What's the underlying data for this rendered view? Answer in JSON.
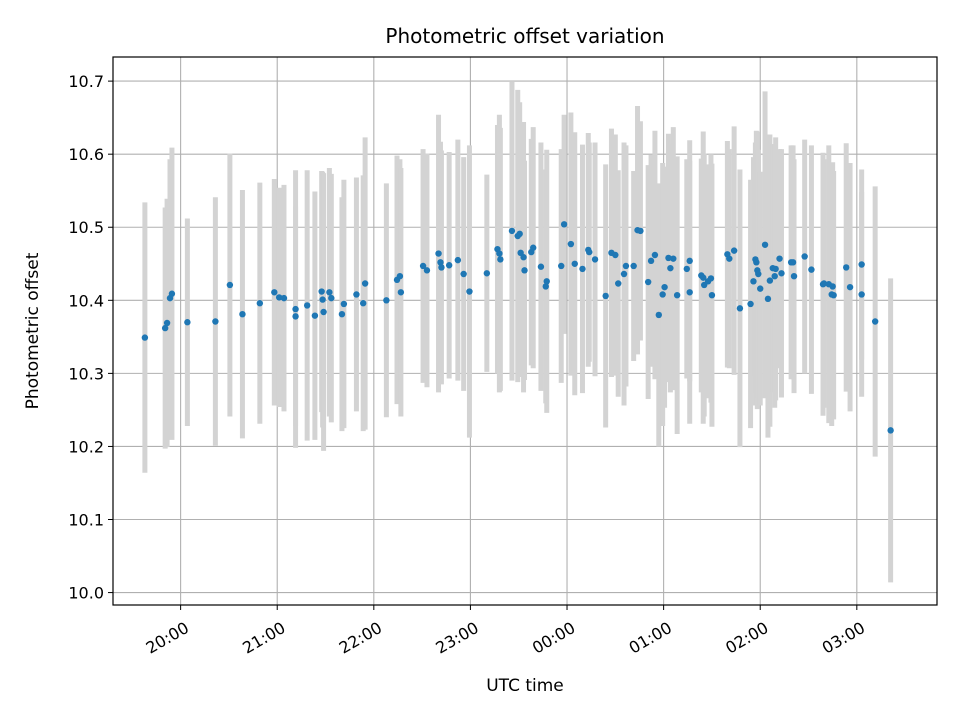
{
  "chart_data": {
    "type": "scatter",
    "title": "Photometric offset variation",
    "xlabel": "UTC time",
    "ylabel": "Photometric offset",
    "grid": true,
    "x_unit": "hours UTC (values above 24 are after midnight)",
    "xlim": [
      19.3,
      27.83
    ],
    "ylim": [
      9.983,
      10.733
    ],
    "x_ticks": [
      {
        "value": 20,
        "label": "20:00"
      },
      {
        "value": 21,
        "label": "21:00"
      },
      {
        "value": 22,
        "label": "22:00"
      },
      {
        "value": 23,
        "label": "23:00"
      },
      {
        "value": 24,
        "label": "00:00"
      },
      {
        "value": 25,
        "label": "01:00"
      },
      {
        "value": 26,
        "label": "02:00"
      },
      {
        "value": 27,
        "label": "03:00"
      }
    ],
    "y_ticks": [
      {
        "value": 10.0,
        "label": "10.0"
      },
      {
        "value": 10.1,
        "label": "10.1"
      },
      {
        "value": 10.2,
        "label": "10.2"
      },
      {
        "value": 10.3,
        "label": "10.3"
      },
      {
        "value": 10.4,
        "label": "10.4"
      },
      {
        "value": 10.5,
        "label": "10.5"
      },
      {
        "value": 10.6,
        "label": "10.6"
      },
      {
        "value": 10.7,
        "label": "10.7"
      }
    ],
    "colors": {
      "point": "#1f77b4",
      "errorbar": "#d3d3d3",
      "grid": "#b0b0b0"
    },
    "series": [
      {
        "points": [
          [
            19.63,
            10.349,
            0.185
          ],
          [
            19.84,
            10.362,
            0.165
          ],
          [
            19.86,
            10.369,
            0.17
          ],
          [
            19.89,
            10.403,
            0.19
          ],
          [
            19.91,
            10.409,
            0.2
          ],
          [
            20.07,
            10.37,
            0.142
          ],
          [
            20.36,
            10.371,
            0.17
          ],
          [
            20.51,
            10.421,
            0.18
          ],
          [
            20.64,
            10.381,
            0.17
          ],
          [
            20.82,
            10.396,
            0.165
          ],
          [
            20.97,
            10.411,
            0.155
          ],
          [
            21.02,
            10.404,
            0.15
          ],
          [
            21.07,
            10.403,
            0.155
          ],
          [
            21.19,
            10.378,
            0.15
          ],
          [
            21.19,
            10.388,
            0.19
          ],
          [
            21.31,
            10.393,
            0.185
          ],
          [
            21.39,
            10.379,
            0.17
          ],
          [
            21.46,
            10.412,
            0.165
          ],
          [
            21.47,
            10.401,
            0.175
          ],
          [
            21.48,
            10.384,
            0.19
          ],
          [
            21.54,
            10.411,
            0.17
          ],
          [
            21.56,
            10.403,
            0.17
          ],
          [
            21.67,
            10.381,
            0.16
          ],
          [
            21.69,
            10.395,
            0.17
          ],
          [
            21.82,
            10.408,
            0.16
          ],
          [
            21.89,
            10.396,
            0.175
          ],
          [
            21.91,
            10.423,
            0.2
          ],
          [
            22.13,
            10.4,
            0.16
          ],
          [
            22.24,
            10.428,
            0.17
          ],
          [
            22.27,
            10.433,
            0.16
          ],
          [
            22.28,
            10.411,
            0.17
          ],
          [
            22.51,
            10.447,
            0.16
          ],
          [
            22.55,
            10.441,
            0.16
          ],
          [
            22.67,
            10.464,
            0.19
          ],
          [
            22.69,
            10.452,
            0.165
          ],
          [
            22.7,
            10.445,
            0.16
          ],
          [
            22.78,
            10.448,
            0.155
          ],
          [
            22.87,
            10.455,
            0.165
          ],
          [
            22.93,
            10.436,
            0.16
          ],
          [
            22.99,
            10.412,
            0.2
          ],
          [
            23.17,
            10.437,
            0.135
          ],
          [
            23.28,
            10.47,
            0.17
          ],
          [
            23.3,
            10.464,
            0.19
          ],
          [
            23.31,
            10.456,
            0.18
          ],
          [
            23.43,
            10.495,
            0.205
          ],
          [
            23.49,
            10.488,
            0.2
          ],
          [
            23.51,
            10.491,
            0.18
          ],
          [
            23.52,
            10.465,
            0.17
          ],
          [
            23.55,
            10.459,
            0.185
          ],
          [
            23.56,
            10.441,
            0.15
          ],
          [
            23.63,
            10.466,
            0.155
          ],
          [
            23.65,
            10.472,
            0.165
          ],
          [
            23.73,
            10.446,
            0.17
          ],
          [
            23.78,
            10.419,
            0.16
          ],
          [
            23.79,
            10.426,
            0.18
          ],
          [
            23.94,
            10.447,
            0.16
          ],
          [
            23.97,
            10.504,
            0.15
          ],
          [
            24.04,
            10.477,
            0.18
          ],
          [
            24.08,
            10.45,
            0.18
          ],
          [
            24.16,
            10.443,
            0.17
          ],
          [
            24.22,
            10.469,
            0.16
          ],
          [
            24.23,
            10.466,
            0.15
          ],
          [
            24.29,
            10.456,
            0.16
          ],
          [
            24.4,
            10.406,
            0.18
          ],
          [
            24.46,
            10.465,
            0.17
          ],
          [
            24.5,
            10.462,
            0.165
          ],
          [
            24.53,
            10.423,
            0.155
          ],
          [
            24.59,
            10.436,
            0.18
          ],
          [
            24.61,
            10.447,
            0.165
          ],
          [
            24.69,
            10.447,
            0.13
          ],
          [
            24.73,
            10.496,
            0.17
          ],
          [
            24.76,
            10.495,
            0.15
          ],
          [
            24.84,
            10.425,
            0.16
          ],
          [
            24.87,
            10.454,
            0.145
          ],
          [
            24.91,
            10.462,
            0.17
          ],
          [
            24.95,
            10.38,
            0.18
          ],
          [
            24.99,
            10.408,
            0.18
          ],
          [
            25.01,
            10.418,
            0.165
          ],
          [
            25.05,
            10.458,
            0.17
          ],
          [
            25.07,
            10.444,
            0.17
          ],
          [
            25.1,
            10.457,
            0.18
          ],
          [
            25.14,
            10.407,
            0.19
          ],
          [
            25.24,
            10.443,
            0.15
          ],
          [
            25.27,
            10.454,
            0.165
          ],
          [
            25.27,
            10.411,
            0.18
          ],
          [
            25.39,
            10.434,
            0.16
          ],
          [
            25.41,
            10.431,
            0.2
          ],
          [
            25.42,
            10.421,
            0.18
          ],
          [
            25.46,
            10.426,
            0.16
          ],
          [
            25.49,
            10.43,
            0.17
          ],
          [
            25.5,
            10.407,
            0.18
          ],
          [
            25.66,
            10.463,
            0.155
          ],
          [
            25.68,
            10.457,
            0.15
          ],
          [
            25.73,
            10.468,
            0.17
          ],
          [
            25.79,
            10.389,
            0.19
          ],
          [
            25.9,
            10.395,
            0.17
          ],
          [
            25.93,
            10.426,
            0.17
          ],
          [
            25.95,
            10.456,
            0.16
          ],
          [
            25.96,
            10.452,
            0.18
          ],
          [
            25.97,
            10.441,
            0.19
          ],
          [
            25.98,
            10.436,
            0.17
          ],
          [
            26.0,
            10.416,
            0.16
          ],
          [
            26.05,
            10.476,
            0.21
          ],
          [
            26.08,
            10.402,
            0.19
          ],
          [
            26.1,
            10.427,
            0.2
          ],
          [
            26.13,
            10.444,
            0.17
          ],
          [
            26.15,
            10.433,
            0.18
          ],
          [
            26.16,
            10.443,
            0.18
          ],
          [
            26.2,
            10.457,
            0.15
          ],
          [
            26.22,
            10.437,
            0.17
          ],
          [
            26.32,
            10.452,
            0.16
          ],
          [
            26.34,
            10.452,
            0.16
          ],
          [
            26.35,
            10.433,
            0.16
          ],
          [
            26.46,
            10.46,
            0.16
          ],
          [
            26.53,
            10.442,
            0.17
          ],
          [
            26.65,
            10.422,
            0.18
          ],
          [
            26.66,
            10.423,
            0.17
          ],
          [
            26.71,
            10.422,
            0.19
          ],
          [
            26.74,
            10.408,
            0.18
          ],
          [
            26.75,
            10.419,
            0.17
          ],
          [
            26.76,
            10.407,
            0.17
          ],
          [
            26.89,
            10.445,
            0.17
          ],
          [
            26.93,
            10.418,
            0.17
          ],
          [
            27.05,
            10.408,
            0.14
          ],
          [
            27.05,
            10.449,
            0.13
          ],
          [
            27.19,
            10.371,
            0.185
          ],
          [
            27.35,
            10.222,
            0.208
          ]
        ]
      }
    ]
  }
}
